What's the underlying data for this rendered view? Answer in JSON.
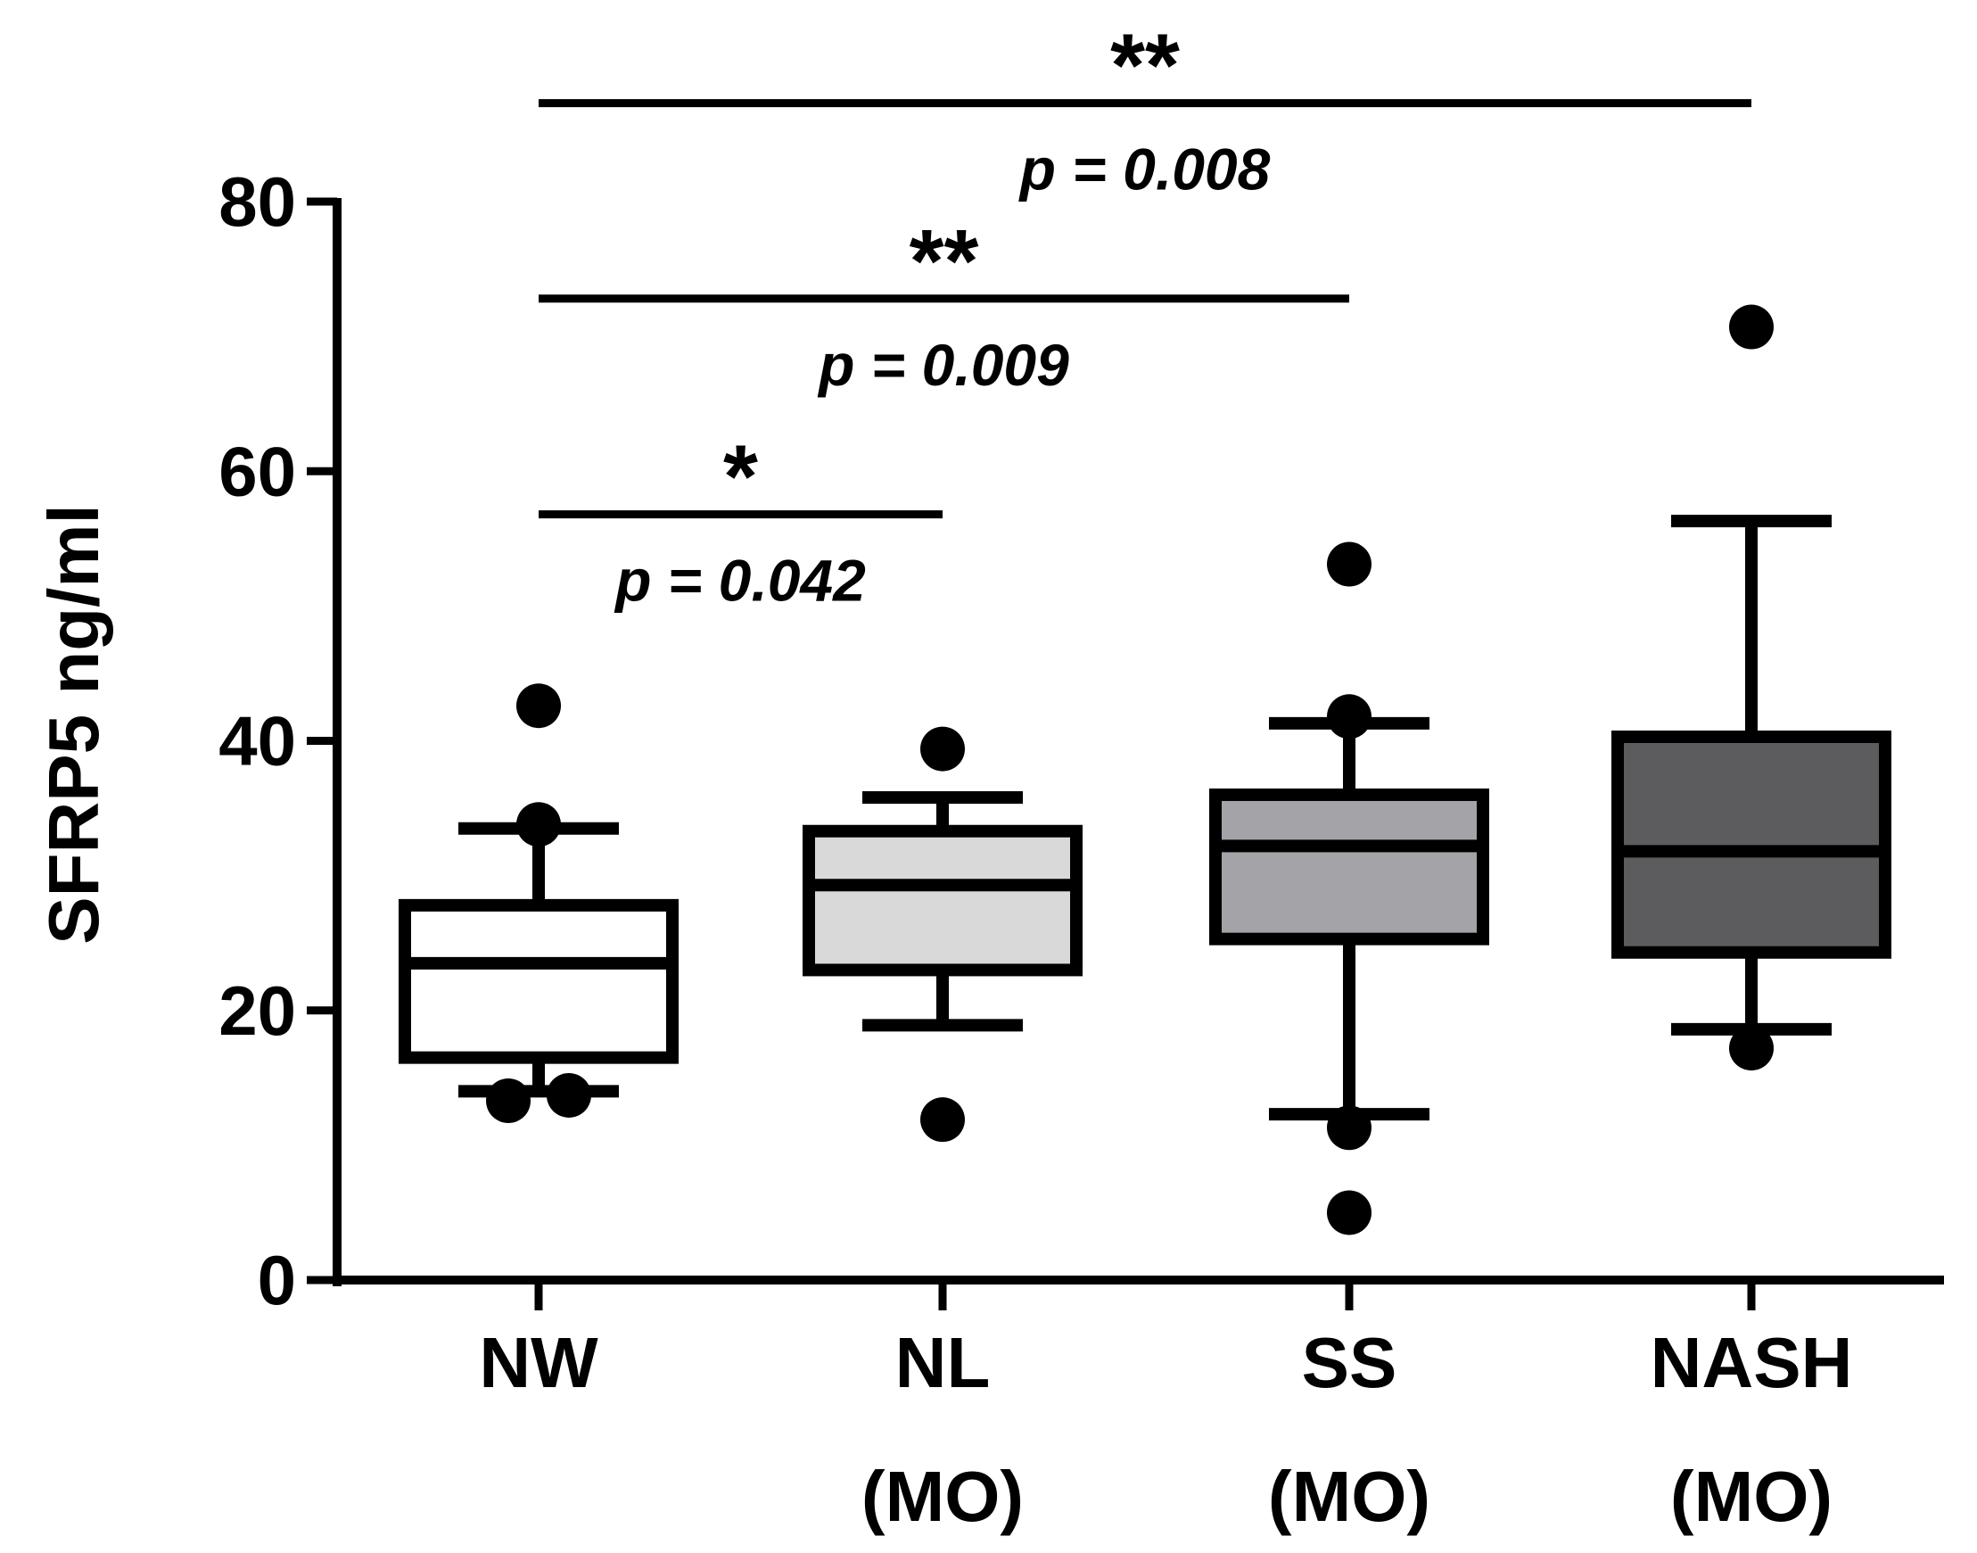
{
  "chart_data": {
    "type": "box",
    "ylabel": "SFRP5 ng/ml",
    "ylim": [
      0,
      80
    ],
    "yticks": [
      0,
      20,
      40,
      60,
      80
    ],
    "grid": false,
    "groups": [
      {
        "label": "NW",
        "sublabel": "",
        "fill": "#ffffff",
        "q1": 16.5,
        "median": 23.5,
        "q3": 27.8,
        "whisker_low": 14.0,
        "whisker_high": 33.5,
        "outliers": [
          {
            "dx": -0.09,
            "y": 13.3
          },
          {
            "dx": 0.09,
            "y": 13.7
          },
          {
            "dx": 0,
            "y": 33.8
          },
          {
            "dx": 0,
            "y": 42.6
          }
        ]
      },
      {
        "label": "NL",
        "sublabel": "(MO)",
        "fill": "#d9d9d9",
        "q1": 23.0,
        "median": 29.3,
        "q3": 33.3,
        "whisker_low": 18.9,
        "whisker_high": 35.8,
        "outliers": [
          {
            "dx": 0,
            "y": 11.9
          },
          {
            "dx": 0,
            "y": 39.4
          }
        ]
      },
      {
        "label": "SS",
        "sublabel": "(MO)",
        "fill": "#a4a4a8",
        "q1": 25.3,
        "median": 32.2,
        "q3": 36.0,
        "whisker_low": 12.3,
        "whisker_high": 41.3,
        "outliers": [
          {
            "dx": 0,
            "y": 5.0
          },
          {
            "dx": 0,
            "y": 11.3
          },
          {
            "dx": 0,
            "y": 41.8
          },
          {
            "dx": 0,
            "y": 53.1
          }
        ]
      },
      {
        "label": "NASH",
        "sublabel": "(MO)",
        "fill": "#5c5c5e",
        "q1": 24.3,
        "median": 31.8,
        "q3": 40.3,
        "whisker_low": 18.6,
        "whisker_high": 56.3,
        "outliers": [
          {
            "dx": 0,
            "y": 17.2
          },
          {
            "dx": 0,
            "y": 70.7
          }
        ]
      }
    ],
    "comparisons": [
      {
        "from": 0,
        "to": 1,
        "y_line": 56.8,
        "stars": "*",
        "p_label": "p = 0.042"
      },
      {
        "from": 0,
        "to": 2,
        "y_line": 72.8,
        "stars": "**",
        "p_label": "p = 0.009"
      },
      {
        "from": 0,
        "to": 3,
        "y_line": 87.3,
        "stars": "**",
        "p_label": "p = 0.008"
      }
    ]
  }
}
